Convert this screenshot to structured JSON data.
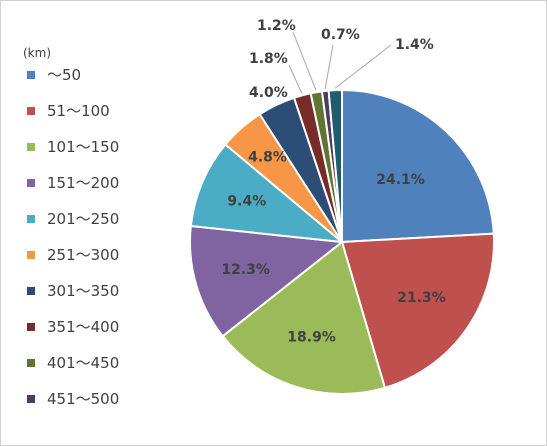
{
  "chart_data": {
    "type": "pie",
    "legend_title": "(km)",
    "legend_position": "left",
    "categories": [
      "～50",
      "51～100",
      "101～150",
      "151～200",
      "201～250",
      "251～300",
      "301～350",
      "351～400",
      "401～450",
      "451～500",
      ""
    ],
    "values": [
      24.1,
      21.3,
      18.9,
      12.3,
      9.4,
      4.8,
      4.0,
      1.8,
      1.2,
      0.7,
      1.4
    ],
    "value_labels": [
      "24.1%",
      "21.3%",
      "18.9%",
      "12.3%",
      "9.4%",
      "4.8%",
      "4.0%",
      "1.8%",
      "1.2%",
      "0.7%",
      "1.4%"
    ],
    "colors": [
      "#4F81BD",
      "#C0504D",
      "#9BBB59",
      "#8064A2",
      "#4BACC6",
      "#F79646",
      "#2C4D75",
      "#772C2A",
      "#5F7530",
      "#4D3B62",
      "#1F5C70"
    ],
    "start_angle_deg": 0,
    "direction": "clockwise"
  }
}
